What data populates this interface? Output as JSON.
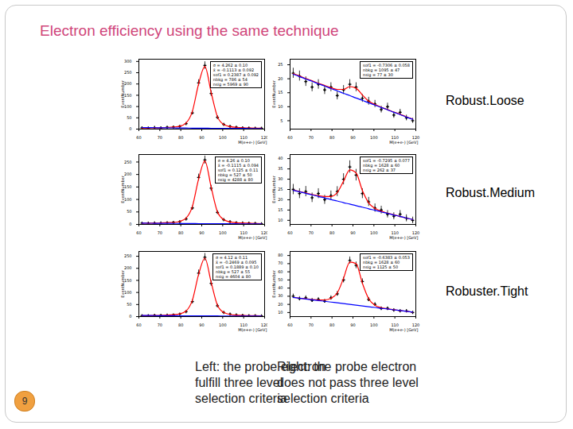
{
  "slide": {
    "title": "Electron efficiency using the same technique",
    "row_labels": [
      "Robust.Loose",
      "Robust.Medium",
      "Robuster.Tight"
    ],
    "captions": [
      [
        "Left: the probe electron",
        "fulfill three level",
        "selection criteria"
      ],
      [
        "Right: the probe electron",
        "does not pass three level",
        "selection criteria"
      ]
    ],
    "page_number": "9"
  },
  "chart_data": [
    {
      "type": "scatter",
      "xlabel": "M(e+e-) [GeV]",
      "ylabel": "EventNumber",
      "xlim": [
        60,
        120
      ],
      "xticks": [
        60,
        70,
        80,
        90,
        100,
        110,
        120
      ],
      "ylim": [
        0,
        310
      ],
      "yticks": [
        0,
        50,
        100,
        150,
        200,
        250,
        300
      ],
      "stats": [
        "σ = 4.262 ± 0.10",
        "x̄ = -0.1113 ± 0.092",
        "sof1 = 0.2387 ± 0.092",
        "nbkg = 786 ± 54",
        "nsig = 5969 ± 90"
      ],
      "x": [
        61.5,
        64.5,
        67.5,
        70.5,
        73.5,
        76.5,
        79.5,
        82.5,
        85.5,
        88.5,
        91.5,
        94.5,
        97.5,
        100.5,
        103.5,
        106.5,
        109.5,
        112.5,
        115.5,
        118.5
      ],
      "series": [
        {
          "type": "scatter",
          "marker": "cross",
          "color": "#000000",
          "values": [
            6,
            5,
            7,
            6,
            8,
            9,
            12,
            24,
            72,
            205,
            282,
            158,
            52,
            21,
            12,
            8,
            6,
            5,
            4,
            4
          ],
          "errors": [
            2.4,
            2.2,
            2.6,
            2.4,
            2.8,
            3,
            3.5,
            4.9,
            8.5,
            14.3,
            16.8,
            12.6,
            7.2,
            4.6,
            3.5,
            2.8,
            2.4,
            2.2,
            2,
            2
          ]
        },
        {
          "type": "line",
          "color": "#ff0000",
          "values": [
            5,
            5,
            6,
            6,
            7,
            9,
            13,
            27,
            78,
            200,
            278,
            162,
            55,
            20,
            11,
            8,
            6,
            5,
            4,
            4
          ]
        },
        {
          "type": "line",
          "color": "#0000ff",
          "values": [
            7,
            6.6,
            6.2,
            5.8,
            5.5,
            5.2,
            4.9,
            4.6,
            4.3,
            4,
            3.8,
            3.6,
            3.4,
            3.2,
            3,
            2.9,
            2.8,
            2.7,
            2.6,
            2.5
          ]
        }
      ]
    },
    {
      "type": "scatter",
      "xlabel": "M(e+e-) [GeV]",
      "ylabel": "EventNumber",
      "xlim": [
        60,
        120
      ],
      "xticks": [
        60,
        70,
        80,
        90,
        100,
        110,
        120
      ],
      "ylim": [
        2,
        27
      ],
      "yticks": [
        5,
        10,
        15,
        20,
        25
      ],
      "stats": [
        "sof1 = -0.7306 ± 0.058",
        "nbkg = 1095 ± 47",
        "nsig = 77 ± 30"
      ],
      "x": [
        61.5,
        64.5,
        67.5,
        70.5,
        73.5,
        76.5,
        79.5,
        82.5,
        85.5,
        88.5,
        91.5,
        94.5,
        97.5,
        100.5,
        103.5,
        106.5,
        109.5,
        112.5,
        115.5,
        118.5
      ],
      "series": [
        {
          "type": "scatter",
          "marker": "cross",
          "color": "#000000",
          "values": [
            22,
            21,
            19,
            17,
            18,
            16,
            17,
            14,
            16,
            18,
            17,
            13,
            12,
            11,
            9,
            10,
            7,
            8,
            6,
            5
          ],
          "errors": [
            1.8,
            1.8,
            1.7,
            1.6,
            1.7,
            1.6,
            1.6,
            1.5,
            1.6,
            1.7,
            1.6,
            1.4,
            1.4,
            1.3,
            1.2,
            1.3,
            1.1,
            1.1,
            1,
            0.9
          ]
        },
        {
          "type": "line",
          "color": "#ff0000",
          "values": [
            21.8,
            21,
            20.1,
            19.3,
            18.4,
            17.6,
            16.8,
            16.2,
            16.2,
            17.2,
            16.6,
            14.2,
            12,
            10.8,
            9.8,
            9,
            8.1,
            7.3,
            6.4,
            5.6
          ]
        },
        {
          "type": "line",
          "color": "#0000ff",
          "values": [
            21.6,
            20.8,
            19.9,
            19.1,
            18.2,
            17.4,
            16.5,
            15.7,
            14.8,
            14,
            13.1,
            12.3,
            11.4,
            10.6,
            9.7,
            8.9,
            8,
            7.2,
            6.3,
            5.5
          ]
        }
      ]
    },
    {
      "type": "scatter",
      "xlabel": "M(e+e-) [GeV]",
      "ylabel": "EventNumber",
      "xlim": [
        60,
        120
      ],
      "xticks": [
        60,
        70,
        80,
        90,
        100,
        110,
        120
      ],
      "ylim": [
        0,
        280
      ],
      "yticks": [
        0,
        50,
        100,
        150,
        200,
        250
      ],
      "stats": [
        "σ = 4.26 ± 0.10",
        "x̄ = -0.1115 ± 0.094",
        "sof1 = 0.125 ± 0.11",
        "nbkg = 527 ± 50",
        "nsig = 4288 ± 80"
      ],
      "x": [
        61.5,
        64.5,
        67.5,
        70.5,
        73.5,
        76.5,
        79.5,
        82.5,
        85.5,
        88.5,
        91.5,
        94.5,
        97.5,
        100.5,
        103.5,
        106.5,
        109.5,
        112.5,
        115.5,
        118.5
      ],
      "series": [
        {
          "type": "scatter",
          "marker": "cross",
          "color": "#000000",
          "values": [
            5,
            5,
            6,
            6,
            7,
            8,
            11,
            22,
            66,
            188,
            258,
            145,
            48,
            19,
            11,
            7,
            6,
            5,
            4,
            3
          ],
          "errors": [
            2.2,
            2.2,
            2.4,
            2.4,
            2.6,
            2.8,
            3.3,
            4.7,
            8.1,
            13.7,
            16.1,
            12,
            6.9,
            4.4,
            3.3,
            2.6,
            2.4,
            2.2,
            2,
            1.7
          ]
        },
        {
          "type": "line",
          "color": "#ff0000",
          "values": [
            5,
            5,
            5,
            6,
            7,
            8,
            12,
            25,
            71,
            182,
            254,
            149,
            50,
            19,
            10,
            7,
            6,
            5,
            4,
            3
          ]
        },
        {
          "type": "line",
          "color": "#0000ff",
          "values": [
            5,
            4.8,
            4.6,
            4.4,
            4.2,
            4,
            3.8,
            3.6,
            3.4,
            3.2,
            3,
            2.9,
            2.8,
            2.7,
            2.6,
            2.5,
            2.4,
            2.3,
            2.2,
            2.1
          ]
        }
      ]
    },
    {
      "type": "scatter",
      "xlabel": "M(e+e-) [GeV]",
      "ylabel": "EventNumber",
      "xlim": [
        60,
        120
      ],
      "xticks": [
        60,
        70,
        80,
        90,
        100,
        110,
        120
      ],
      "ylim": [
        8,
        42
      ],
      "yticks": [
        10,
        15,
        20,
        25,
        30,
        35,
        40
      ],
      "stats": [
        "sof1 = -0.7295 ± 0.077",
        "nbkg = 1628 ± 60",
        "nsig = 262 ± 37"
      ],
      "x": [
        61.5,
        64.5,
        67.5,
        70.5,
        73.5,
        76.5,
        79.5,
        82.5,
        85.5,
        88.5,
        91.5,
        94.5,
        97.5,
        100.5,
        103.5,
        106.5,
        109.5,
        112.5,
        115.5,
        118.5
      ],
      "series": [
        {
          "type": "scatter",
          "marker": "cross",
          "color": "#000000",
          "values": [
            25,
            23,
            24,
            21,
            23,
            20,
            22,
            24,
            30,
            36,
            32,
            23,
            19,
            16,
            15,
            13,
            12,
            13,
            11,
            10
          ],
          "errors": [
            2.5,
            2.4,
            2.5,
            2.3,
            2.4,
            2.2,
            2.3,
            2.4,
            2.7,
            3,
            2.8,
            2.4,
            2.2,
            2,
            1.9,
            1.8,
            1.7,
            1.8,
            1.7,
            1.6
          ]
        },
        {
          "type": "line",
          "color": "#ff0000",
          "values": [
            24.7,
            24,
            23.3,
            22.6,
            22,
            21.6,
            21.6,
            23.5,
            29,
            34.5,
            33,
            24.5,
            18.5,
            15.8,
            14.4,
            13.5,
            12.7,
            11.9,
            11.1,
            10.4
          ]
        },
        {
          "type": "line",
          "color": "#0000ff",
          "values": [
            24.6,
            23.9,
            23.1,
            22.4,
            21.6,
            20.9,
            20.1,
            19.4,
            18.6,
            17.9,
            17.1,
            16.4,
            15.6,
            14.9,
            14.1,
            13.4,
            12.6,
            11.9,
            11.1,
            10.4
          ]
        }
      ]
    },
    {
      "type": "scatter",
      "xlabel": "M(e+e-) [GeV]",
      "ylabel": "EventNumber",
      "xlim": [
        60,
        120
      ],
      "xticks": [
        60,
        70,
        80,
        90,
        100,
        110,
        120
      ],
      "ylim": [
        0,
        270
      ],
      "yticks": [
        0,
        50,
        100,
        150,
        200,
        250
      ],
      "stats": [
        "σ = 4.12 ± 0.11",
        "x̄ = -0.2469 ± 0.095",
        "sof1 = 0.1889 ± 0.10",
        "nbkg = 527 ± 55",
        "nsig = 4604 ± 80"
      ],
      "x": [
        61.5,
        64.5,
        67.5,
        70.5,
        73.5,
        76.5,
        79.5,
        82.5,
        85.5,
        88.5,
        91.5,
        94.5,
        97.5,
        100.5,
        103.5,
        106.5,
        109.5,
        112.5,
        115.5,
        118.5
      ],
      "series": [
        {
          "type": "scatter",
          "marker": "cross",
          "color": "#000000",
          "values": [
            4,
            4,
            5,
            5,
            6,
            7,
            10,
            20,
            62,
            180,
            246,
            138,
            45,
            17,
            10,
            7,
            5,
            4,
            4,
            3
          ],
          "errors": [
            2,
            2,
            2.2,
            2.2,
            2.4,
            2.6,
            3.2,
            4.5,
            7.9,
            13.4,
            15.7,
            11.7,
            6.7,
            4.1,
            3.2,
            2.6,
            2.2,
            2,
            2,
            1.7
          ]
        },
        {
          "type": "line",
          "color": "#ff0000",
          "values": [
            4,
            4,
            5,
            5,
            6,
            8,
            11,
            23,
            67,
            175,
            242,
            142,
            47,
            17,
            9,
            6,
            5,
            4,
            4,
            3
          ]
        },
        {
          "type": "line",
          "color": "#0000ff",
          "values": [
            4.5,
            4.3,
            4.1,
            3.9,
            3.7,
            3.5,
            3.3,
            3.1,
            3,
            2.9,
            2.8,
            2.7,
            2.6,
            2.5,
            2.4,
            2.3,
            2.2,
            2.1,
            2,
            1.9
          ]
        }
      ]
    },
    {
      "type": "scatter",
      "xlabel": "M(e+e-) [GeV]",
      "ylabel": "EventNumber",
      "xlim": [
        60,
        120
      ],
      "xticks": [
        60,
        70,
        80,
        90,
        100,
        110,
        120
      ],
      "ylim": [
        5,
        85
      ],
      "yticks": [
        10,
        20,
        30,
        40,
        50,
        60,
        70,
        80
      ],
      "stats": [
        "sof1 = -0.6383 ± 0.053",
        "nbkg = 1628 ± 60",
        "nsig = 1125 ± 50"
      ],
      "x": [
        61.5,
        64.5,
        67.5,
        70.5,
        73.5,
        76.5,
        79.5,
        82.5,
        85.5,
        88.5,
        91.5,
        94.5,
        97.5,
        100.5,
        103.5,
        106.5,
        109.5,
        112.5,
        115.5,
        118.5
      ],
      "series": [
        {
          "type": "scatter",
          "marker": "cross",
          "color": "#000000",
          "values": [
            30,
            27,
            28,
            25,
            26,
            24,
            28,
            33,
            50,
            74,
            68,
            48,
            26,
            20,
            15,
            15,
            13,
            12,
            12,
            10
          ],
          "errors": [
            2.7,
            2.6,
            2.6,
            2.5,
            2.5,
            2.4,
            2.6,
            2.9,
            3.5,
            4.3,
            4.1,
            3.5,
            2.5,
            2.2,
            1.9,
            1.9,
            1.8,
            1.7,
            1.7,
            1.6
          ]
        },
        {
          "type": "line",
          "color": "#ff0000",
          "values": [
            28.6,
            27.7,
            26.8,
            26,
            25.4,
            25.5,
            27.5,
            34,
            52,
            72,
            70,
            46,
            27,
            19,
            16,
            14.6,
            13.5,
            12.5,
            11.5,
            10.5
          ]
        },
        {
          "type": "line",
          "color": "#0000ff",
          "values": [
            28.5,
            27.6,
            26.6,
            25.7,
            24.7,
            23.8,
            22.8,
            21.9,
            20.9,
            20,
            19,
            18.1,
            17.1,
            16.2,
            15.2,
            14.3,
            13.3,
            12.4,
            11.4,
            10.5
          ]
        }
      ]
    }
  ]
}
